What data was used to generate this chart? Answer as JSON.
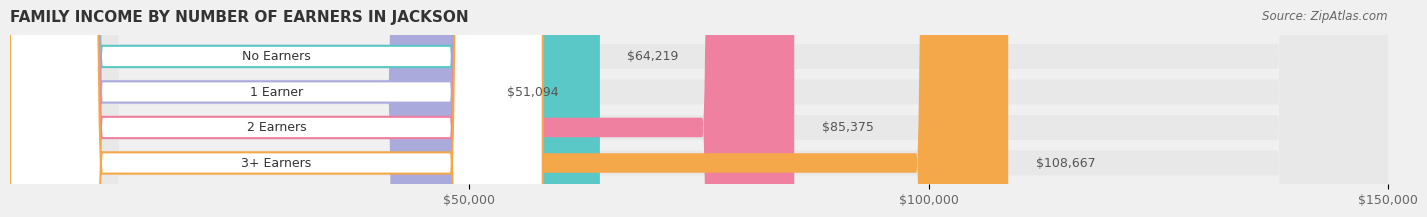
{
  "title": "FAMILY INCOME BY NUMBER OF EARNERS IN JACKSON",
  "source": "Source: ZipAtlas.com",
  "categories": [
    "No Earners",
    "1 Earner",
    "2 Earners",
    "3+ Earners"
  ],
  "values": [
    64219,
    51094,
    85375,
    108667
  ],
  "bar_colors": [
    "#5bc8c8",
    "#aaaadd",
    "#f080a0",
    "#f5a84a"
  ],
  "bar_edge_colors": [
    "#5bc8c8",
    "#aaaadd",
    "#f080a0",
    "#f5a84a"
  ],
  "label_colors": [
    "#5bc8c8",
    "#aaaadd",
    "#f080a0",
    "#f5a84a"
  ],
  "background_color": "#f0f0f0",
  "bar_bg_color": "#e8e8e8",
  "xmin": 0,
  "xmax": 150000,
  "xticks": [
    50000,
    100000,
    150000
  ],
  "xtick_labels": [
    "$50,000",
    "$100,000",
    "$150,000"
  ],
  "value_labels": [
    "$64,219",
    "$51,094",
    "$85,375",
    "$108,667"
  ],
  "bar_height": 0.55,
  "title_fontsize": 11,
  "source_fontsize": 8.5,
  "label_fontsize": 9,
  "value_fontsize": 9,
  "tick_fontsize": 9
}
